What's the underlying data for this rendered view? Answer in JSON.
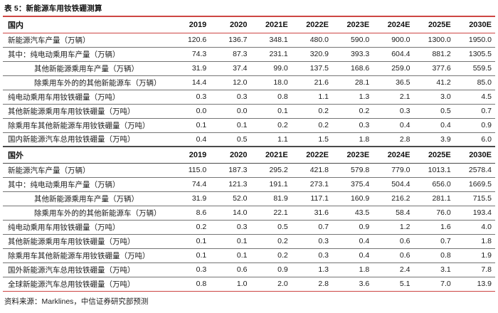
{
  "title": "表 5：新能源车用钕铁硼测算",
  "source_note": "资料来源：Marklines，中信证券研究部预测",
  "colors": {
    "accent_red": "#cd4644",
    "row_line_gray": "#757575",
    "section_line_dark": "#4a4a4a",
    "text": "#1c1c1c"
  },
  "chart_data": {
    "type": "table",
    "title": "表 5：新能源车用钕铁硼测算",
    "columns": [
      "2019",
      "2020",
      "2021E",
      "2022E",
      "2023E",
      "2024E",
      "2025E",
      "2030E"
    ],
    "sections": [
      {
        "header": "国内",
        "rows": [
          {
            "label": "新能源汽车产量（万辆）",
            "indent": 0,
            "values": [
              "120.6",
              "136.7",
              "348.1",
              "480.0",
              "590.0",
              "900.0",
              "1300.0",
              "1950.0"
            ]
          },
          {
            "label": "其中：纯电动乘用车产量（万辆）",
            "indent": 0,
            "values": [
              "74.3",
              "87.3",
              "231.1",
              "320.9",
              "393.3",
              "604.4",
              "881.2",
              "1305.5"
            ]
          },
          {
            "label": "其他新能源乘用车产量（万辆）",
            "indent": 1,
            "values": [
              "31.9",
              "37.4",
              "99.0",
              "137.5",
              "168.6",
              "259.0",
              "377.6",
              "559.5"
            ]
          },
          {
            "label": "除乘用车外的的其他新能源车（万辆）",
            "indent": 1,
            "values": [
              "14.4",
              "12.0",
              "18.0",
              "21.6",
              "28.1",
              "36.5",
              "41.2",
              "85.0"
            ]
          },
          {
            "label": "纯电动乘用车用钕铁硼量（万吨）",
            "indent": 0,
            "values": [
              "0.3",
              "0.3",
              "0.8",
              "1.1",
              "1.3",
              "2.1",
              "3.0",
              "4.5"
            ]
          },
          {
            "label": "其他新能源乘用车用钕铁硼量（万吨）",
            "indent": 0,
            "values": [
              "0.0",
              "0.0",
              "0.1",
              "0.2",
              "0.2",
              "0.3",
              "0.5",
              "0.7"
            ]
          },
          {
            "label": "除乘用车其他新能源车用钕铁硼量（万吨）",
            "indent": 0,
            "values": [
              "0.1",
              "0.1",
              "0.2",
              "0.2",
              "0.3",
              "0.4",
              "0.4",
              "0.9"
            ]
          },
          {
            "label": "国内新能源汽车总用钕铁硼量（万吨）",
            "indent": 0,
            "values": [
              "0.4",
              "0.5",
              "1.1",
              "1.5",
              "1.8",
              "2.8",
              "3.9",
              "6.0"
            ]
          }
        ]
      },
      {
        "header": "国外",
        "rows": [
          {
            "label": "新能源汽车产量（万辆）",
            "indent": 0,
            "values": [
              "115.0",
              "187.3",
              "295.2",
              "421.8",
              "579.8",
              "779.0",
              "1013.1",
              "2578.4"
            ]
          },
          {
            "label": "其中：纯电动乘用车产量（万辆）",
            "indent": 0,
            "values": [
              "74.4",
              "121.3",
              "191.1",
              "273.1",
              "375.4",
              "504.4",
              "656.0",
              "1669.5"
            ]
          },
          {
            "label": "其他新能源乘用车产量（万辆）",
            "indent": 1,
            "values": [
              "31.9",
              "52.0",
              "81.9",
              "117.1",
              "160.9",
              "216.2",
              "281.1",
              "715.5"
            ]
          },
          {
            "label": "除乘用车外的的其他新能源车（万辆）",
            "indent": 1,
            "values": [
              "8.6",
              "14.0",
              "22.1",
              "31.6",
              "43.5",
              "58.4",
              "76.0",
              "193.4"
            ]
          },
          {
            "label": "纯电动乘用车用钕铁硼量（万吨）",
            "indent": 0,
            "values": [
              "0.2",
              "0.3",
              "0.5",
              "0.7",
              "0.9",
              "1.2",
              "1.6",
              "4.0"
            ]
          },
          {
            "label": "其他新能源乘用车用钕铁硼量（万吨）",
            "indent": 0,
            "values": [
              "0.1",
              "0.1",
              "0.2",
              "0.3",
              "0.4",
              "0.6",
              "0.7",
              "1.8"
            ]
          },
          {
            "label": "除乘用车其他新能源车用钕铁硼量（万吨）",
            "indent": 0,
            "values": [
              "0.1",
              "0.1",
              "0.2",
              "0.3",
              "0.4",
              "0.6",
              "0.8",
              "1.9"
            ]
          },
          {
            "label": "国外新能源汽车总用钕铁硼量（万吨）",
            "indent": 0,
            "values": [
              "0.3",
              "0.6",
              "0.9",
              "1.3",
              "1.8",
              "2.4",
              "3.1",
              "7.8"
            ]
          },
          {
            "label": "全球新能源汽车总用钕铁硼量（万吨）",
            "indent": 0,
            "values": [
              "0.8",
              "1.0",
              "2.0",
              "2.8",
              "3.6",
              "5.1",
              "7.0",
              "13.9"
            ]
          }
        ]
      }
    ]
  }
}
